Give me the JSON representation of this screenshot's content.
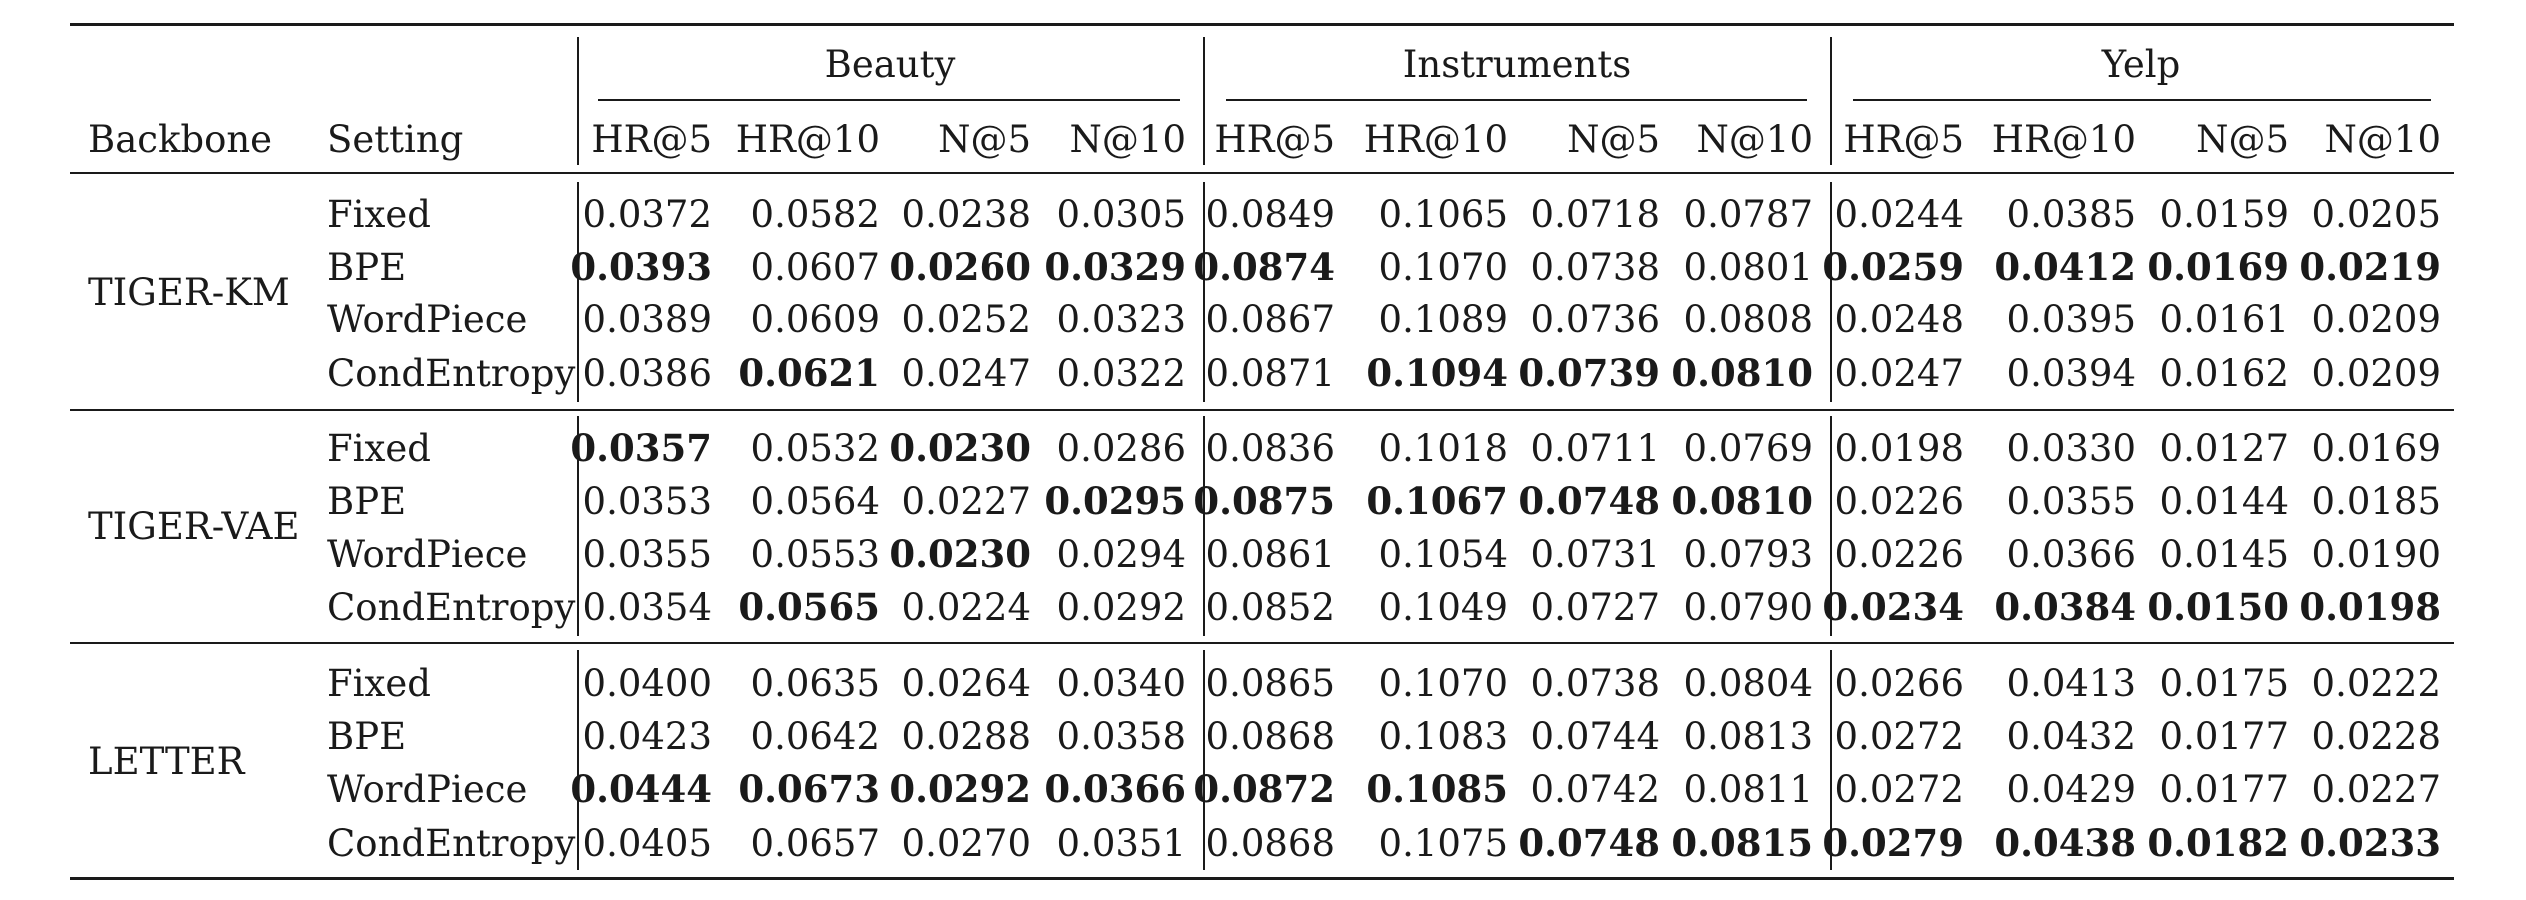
{
  "table": {
    "header": {
      "backbone_label": "Backbone",
      "setting_label": "Setting",
      "groups": [
        "Beauty",
        "Instruments",
        "Yelp"
      ],
      "metrics": [
        "HR@5",
        "HR@10",
        "N@5",
        "N@10"
      ]
    },
    "blocks": [
      {
        "backbone": "TIGER-KM",
        "rows": [
          {
            "setting": "Fixed",
            "values": [
              "0.0372",
              "0.0582",
              "0.0238",
              "0.0305",
              "0.0849",
              "0.1065",
              "0.0718",
              "0.0787",
              "0.0244",
              "0.0385",
              "0.0159",
              "0.0205"
            ],
            "bold": []
          },
          {
            "setting": "BPE",
            "values": [
              "0.0393",
              "0.0607",
              "0.0260",
              "0.0329",
              "0.0874",
              "0.1070",
              "0.0738",
              "0.0801",
              "0.0259",
              "0.0412",
              "0.0169",
              "0.0219"
            ],
            "bold": [
              0,
              2,
              3,
              4,
              8,
              9,
              10,
              11
            ]
          },
          {
            "setting": "WordPiece",
            "values": [
              "0.0389",
              "0.0609",
              "0.0252",
              "0.0323",
              "0.0867",
              "0.1089",
              "0.0736",
              "0.0808",
              "0.0248",
              "0.0395",
              "0.0161",
              "0.0209"
            ],
            "bold": []
          },
          {
            "setting": "CondEntropy",
            "values": [
              "0.0386",
              "0.0621",
              "0.0247",
              "0.0322",
              "0.0871",
              "0.1094",
              "0.0739",
              "0.0810",
              "0.0247",
              "0.0394",
              "0.0162",
              "0.0209"
            ],
            "bold": [
              1,
              5,
              6,
              7
            ]
          }
        ]
      },
      {
        "backbone": "TIGER-VAE",
        "rows": [
          {
            "setting": "Fixed",
            "values": [
              "0.0357",
              "0.0532",
              "0.0230",
              "0.0286",
              "0.0836",
              "0.1018",
              "0.0711",
              "0.0769",
              "0.0198",
              "0.0330",
              "0.0127",
              "0.0169"
            ],
            "bold": [
              0,
              2
            ]
          },
          {
            "setting": "BPE",
            "values": [
              "0.0353",
              "0.0564",
              "0.0227",
              "0.0295",
              "0.0875",
              "0.1067",
              "0.0748",
              "0.0810",
              "0.0226",
              "0.0355",
              "0.0144",
              "0.0185"
            ],
            "bold": [
              3,
              4,
              5,
              6,
              7
            ]
          },
          {
            "setting": "WordPiece",
            "values": [
              "0.0355",
              "0.0553",
              "0.0230",
              "0.0294",
              "0.0861",
              "0.1054",
              "0.0731",
              "0.0793",
              "0.0226",
              "0.0366",
              "0.0145",
              "0.0190"
            ],
            "bold": [
              2
            ]
          },
          {
            "setting": "CondEntropy",
            "values": [
              "0.0354",
              "0.0565",
              "0.0224",
              "0.0292",
              "0.0852",
              "0.1049",
              "0.0727",
              "0.0790",
              "0.0234",
              "0.0384",
              "0.0150",
              "0.0198"
            ],
            "bold": [
              1,
              8,
              9,
              10,
              11
            ]
          }
        ]
      },
      {
        "backbone": "LETTER",
        "rows": [
          {
            "setting": "Fixed",
            "values": [
              "0.0400",
              "0.0635",
              "0.0264",
              "0.0340",
              "0.0865",
              "0.1070",
              "0.0738",
              "0.0804",
              "0.0266",
              "0.0413",
              "0.0175",
              "0.0222"
            ],
            "bold": []
          },
          {
            "setting": "BPE",
            "values": [
              "0.0423",
              "0.0642",
              "0.0288",
              "0.0358",
              "0.0868",
              "0.1083",
              "0.0744",
              "0.0813",
              "0.0272",
              "0.0432",
              "0.0177",
              "0.0228"
            ],
            "bold": []
          },
          {
            "setting": "WordPiece",
            "values": [
              "0.0444",
              "0.0673",
              "0.0292",
              "0.0366",
              "0.0872",
              "0.1085",
              "0.0742",
              "0.0811",
              "0.0272",
              "0.0429",
              "0.0177",
              "0.0227"
            ],
            "bold": [
              0,
              1,
              2,
              3,
              4,
              5
            ]
          },
          {
            "setting": "CondEntropy",
            "values": [
              "0.0405",
              "0.0657",
              "0.0270",
              "0.0351",
              "0.0868",
              "0.1075",
              "0.0748",
              "0.0815",
              "0.0279",
              "0.0438",
              "0.0182",
              "0.0233"
            ],
            "bold": [
              6,
              7,
              8,
              9,
              10,
              11
            ]
          }
        ]
      }
    ]
  }
}
